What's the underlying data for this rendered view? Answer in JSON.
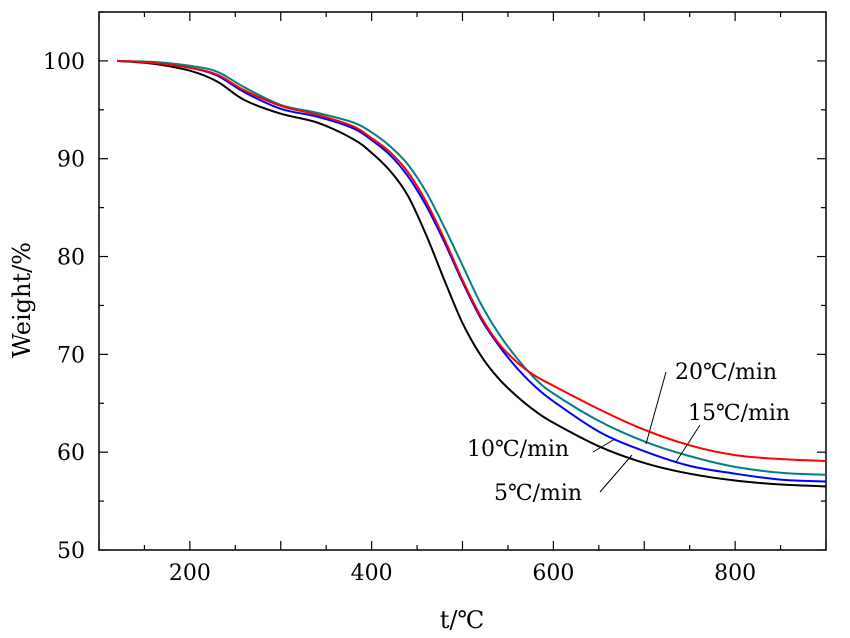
{
  "chart_data": {
    "type": "line",
    "xlabel": "t/℃",
    "ylabel": "Weight/%",
    "xlim": [
      100,
      900
    ],
    "ylim": [
      50,
      105
    ],
    "x_ticks": [
      200,
      400,
      600,
      800
    ],
    "y_ticks": [
      50,
      60,
      70,
      80,
      90,
      100
    ],
    "grid": false,
    "legend": "none (curves labeled by annotations)",
    "series": [
      {
        "name": "5℃/min",
        "color": "#000000",
        "x": [
          120,
          160,
          200,
          230,
          260,
          300,
          340,
          380,
          400,
          420,
          440,
          460,
          480,
          500,
          520,
          540,
          560,
          580,
          600,
          650,
          700,
          750,
          800,
          850,
          900
        ],
        "y": [
          100,
          99.7,
          99.0,
          97.9,
          96.0,
          94.6,
          93.7,
          92.0,
          90.6,
          88.8,
          86.2,
          82.2,
          77.6,
          73.2,
          69.9,
          67.5,
          65.7,
          64.2,
          63.0,
          60.6,
          58.9,
          57.8,
          57.1,
          56.7,
          56.5
        ]
      },
      {
        "name": "10℃/min",
        "color": "#0000ff",
        "x": [
          120,
          160,
          200,
          230,
          260,
          300,
          340,
          380,
          400,
          420,
          440,
          460,
          480,
          500,
          520,
          540,
          560,
          580,
          600,
          650,
          700,
          750,
          800,
          850,
          900
        ],
        "y": [
          100,
          99.8,
          99.3,
          98.5,
          96.8,
          95.1,
          94.3,
          93.1,
          91.9,
          90.4,
          88.2,
          85.2,
          81.5,
          77.4,
          73.7,
          70.9,
          68.6,
          66.7,
          65.2,
          62.1,
          60.1,
          58.6,
          57.8,
          57.2,
          57.0
        ]
      },
      {
        "name": "15℃/min",
        "color": "#008080",
        "x": [
          120,
          160,
          200,
          230,
          260,
          300,
          340,
          380,
          400,
          420,
          440,
          460,
          480,
          500,
          520,
          540,
          560,
          580,
          600,
          650,
          700,
          750,
          800,
          850,
          900
        ],
        "y": [
          100,
          99.9,
          99.5,
          98.9,
          97.3,
          95.5,
          94.7,
          93.7,
          92.7,
          91.3,
          89.4,
          86.6,
          83.0,
          79.1,
          75.2,
          72.1,
          69.6,
          67.5,
          66.0,
          63.2,
          61.1,
          59.6,
          58.5,
          57.9,
          57.7
        ]
      },
      {
        "name": "20℃/min",
        "color": "#ff0000",
        "x": [
          120,
          160,
          200,
          230,
          260,
          300,
          340,
          380,
          400,
          420,
          440,
          460,
          480,
          500,
          520,
          540,
          560,
          580,
          600,
          650,
          700,
          750,
          800,
          850,
          900
        ],
        "y": [
          100,
          99.8,
          99.3,
          98.6,
          97.0,
          95.4,
          94.5,
          93.3,
          92.1,
          90.7,
          88.6,
          85.6,
          81.8,
          77.6,
          73.9,
          71.1,
          69.2,
          67.8,
          66.8,
          64.4,
          62.3,
          60.7,
          59.7,
          59.3,
          59.1
        ]
      }
    ],
    "annotations": [
      {
        "text": "20℃/min",
        "series": "20℃/min"
      },
      {
        "text": "15℃/min",
        "series": "15℃/min"
      },
      {
        "text": "10℃/min",
        "series": "10℃/min"
      },
      {
        "text": "5℃/min",
        "series": "5℃/min"
      }
    ]
  }
}
